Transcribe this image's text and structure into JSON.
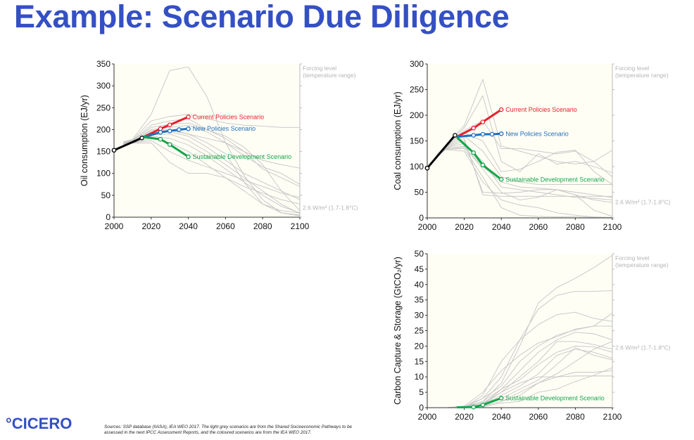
{
  "title": "Example: Scenario Due Diligence",
  "logo": "°CICERO",
  "sources": "Sources: SSP database (IIASA), IEA WEO 2017. The light grey scenarios are from the Shared Socioeconomic Pathways to be assessed in the next IPCC Assessment Reports, and the coloured scenarios are from the IEA WEO 2017.",
  "colors": {
    "title": "#3450c4",
    "current": "#e8202a",
    "new": "#1f6fbf",
    "sds": "#12a54a",
    "history": "#000000",
    "grey": "#c4c4c4",
    "plot_bg": "#fffef5"
  },
  "chart_data": [
    {
      "id": "oil",
      "type": "line",
      "ylabel": "Oil consumption (EJ/yr)",
      "xlim": [
        2000,
        2100
      ],
      "ylim": [
        0,
        350
      ],
      "xticks": [
        2000,
        2020,
        2040,
        2060,
        2080,
        2100
      ],
      "yticks": [
        0,
        50,
        100,
        150,
        200,
        250,
        300,
        350
      ],
      "side_labels": {
        "top1": "Forcing level",
        "top2": "(temperature range)",
        "bottom": "2.6 W/m² (1.7-1.8°C)",
        "bottom_value": 22
      },
      "series": [
        {
          "name": "History",
          "color_key": "history",
          "x": [
            2000,
            2015
          ],
          "y": [
            153,
            181
          ]
        },
        {
          "name": "Current Policies Scenario",
          "color_key": "current",
          "x": [
            2016,
            2025,
            2030,
            2040
          ],
          "y": [
            183,
            202,
            211,
            229
          ],
          "label": true
        },
        {
          "name": "New Policies Scenario",
          "color_key": "new",
          "x": [
            2016,
            2025,
            2030,
            2035,
            2040
          ],
          "y": [
            183,
            194,
            197,
            200,
            202
          ],
          "label": true
        },
        {
          "name": "Sustainable Development Scenario",
          "color_key": "sds",
          "x": [
            2016,
            2025,
            2030,
            2040
          ],
          "y": [
            183,
            178,
            166,
            138
          ],
          "label": true
        }
      ],
      "grey_x": [
        2005,
        2010,
        2020,
        2030,
        2040,
        2050,
        2060,
        2070,
        2080,
        2090,
        2100
      ],
      "grey": [
        [
          172,
          178,
          235,
          335,
          343,
          275,
          170,
          95,
          40,
          10,
          5
        ],
        [
          172,
          176,
          220,
          230,
          235,
          225,
          215,
          210,
          208,
          205,
          205
        ],
        [
          170,
          175,
          210,
          220,
          225,
          200,
          180,
          150,
          110,
          90,
          70
        ],
        [
          170,
          174,
          205,
          212,
          215,
          200,
          185,
          160,
          120,
          60,
          15
        ],
        [
          170,
          173,
          200,
          205,
          210,
          195,
          170,
          140,
          115,
          100,
          75
        ],
        [
          170,
          172,
          195,
          198,
          190,
          180,
          170,
          150,
          130,
          120,
          112
        ],
        [
          169,
          172,
          190,
          195,
          185,
          160,
          130,
          100,
          80,
          60,
          40
        ],
        [
          169,
          171,
          188,
          190,
          175,
          150,
          120,
          90,
          60,
          30,
          8
        ],
        [
          168,
          171,
          185,
          180,
          165,
          140,
          110,
          80,
          50,
          25,
          10
        ],
        [
          168,
          170,
          180,
          170,
          150,
          120,
          90,
          70,
          55,
          40,
          30
        ],
        [
          167,
          170,
          175,
          150,
          130,
          115,
          100,
          85,
          70,
          55,
          45
        ],
        [
          166,
          169,
          170,
          125,
          100,
          100,
          90,
          60,
          30,
          15,
          10
        ],
        [
          168,
          172,
          198,
          200,
          190,
          170,
          145,
          80,
          30,
          10,
          3
        ]
      ]
    },
    {
      "id": "coal",
      "type": "line",
      "ylabel": "Coal consumption (EJ/yr)",
      "xlim": [
        2000,
        2100
      ],
      "ylim": [
        0,
        300
      ],
      "xticks": [
        2000,
        2020,
        2040,
        2060,
        2080,
        2100
      ],
      "yticks": [
        0,
        50,
        100,
        150,
        200,
        250,
        300
      ],
      "side_labels": {
        "top1": "Forcing level",
        "top2": "(temperature range)",
        "bottom": "2.6 W/m² (1.7-1.8°C)",
        "bottom_value": 31
      },
      "series": [
        {
          "name": "History",
          "color_key": "history",
          "x": [
            2000,
            2015
          ],
          "y": [
            97,
            161
          ]
        },
        {
          "name": "Current Policies Scenario",
          "color_key": "current",
          "x": [
            2016,
            2025,
            2030,
            2040
          ],
          "y": [
            158,
            175,
            187,
            211
          ],
          "label": true
        },
        {
          "name": "New Policies Scenario",
          "color_key": "new",
          "x": [
            2016,
            2025,
            2030,
            2035,
            2040
          ],
          "y": [
            158,
            161,
            163,
            163,
            164
          ],
          "label": true
        },
        {
          "name": "Sustainable Development Scenario",
          "color_key": "sds",
          "x": [
            2016,
            2025,
            2030,
            2040
          ],
          "y": [
            157,
            127,
            103,
            75
          ],
          "label": true
        }
      ],
      "grey_x": [
        2005,
        2010,
        2020,
        2030,
        2040,
        2050,
        2060,
        2070,
        2080,
        2090,
        2100
      ],
      "grey": [
        [
          120,
          140,
          180,
          270,
          140,
          130,
          120,
          110,
          105,
          110,
          132
        ],
        [
          120,
          140,
          175,
          238,
          110,
          90,
          125,
          105,
          110,
          100,
          88
        ],
        [
          122,
          141,
          170,
          190,
          135,
          135,
          130,
          125,
          130,
          110,
          80
        ],
        [
          121,
          140,
          165,
          150,
          90,
          95,
          110,
          128,
          132,
          90,
          65
        ],
        [
          121,
          139,
          160,
          130,
          80,
          70,
          65,
          65,
          65,
          65,
          65
        ],
        [
          120,
          138,
          155,
          45,
          42,
          42,
          42,
          42,
          42,
          42,
          42
        ],
        [
          120,
          137,
          150,
          50,
          48,
          50,
          55,
          55,
          45,
          35,
          30
        ],
        [
          120,
          136,
          145,
          110,
          60,
          55,
          50,
          45,
          40,
          38,
          35
        ],
        [
          120,
          135,
          140,
          95,
          50,
          35,
          40,
          55,
          45,
          15,
          3
        ],
        [
          119,
          134,
          135,
          80,
          20,
          5,
          3,
          2,
          2,
          1,
          1
        ],
        [
          119,
          133,
          130,
          70,
          35,
          25,
          20,
          10,
          5,
          2,
          1
        ],
        [
          119,
          133,
          138,
          100,
          70,
          60,
          58,
          55,
          50,
          45,
          40
        ]
      ]
    },
    {
      "id": "ccs",
      "type": "line",
      "ylabel": "Carbon Capture & Storage (GtCO₂/yr)",
      "xlim": [
        2000,
        2100
      ],
      "ylim": [
        0,
        50
      ],
      "xticks": [
        2000,
        2020,
        2040,
        2060,
        2080,
        2100
      ],
      "yticks": [
        0,
        5,
        10,
        15,
        20,
        25,
        30,
        35,
        40,
        45,
        50
      ],
      "side_labels": {
        "top1": "Forcing level",
        "top2": "(temperature range)",
        "bottom": "2.6 W/m² (1.7-1.8°C)",
        "bottom_value": 19.5
      },
      "series": [
        {
          "name": "Sustainable Development Scenario",
          "color_key": "sds",
          "x": [
            2016,
            2025,
            2030,
            2040
          ],
          "y": [
            0.1,
            0.2,
            0.9,
            3.1
          ],
          "label": true
        }
      ],
      "grey_x": [
        2010,
        2020,
        2030,
        2040,
        2050,
        2060,
        2070,
        2080,
        2090,
        2100
      ],
      "grey": [
        [
          0,
          0,
          2,
          8,
          20,
          34,
          39,
          42,
          45.5,
          49.5
        ],
        [
          0,
          0,
          3,
          10,
          22,
          32,
          36.5,
          37.8,
          37.8,
          38
        ],
        [
          0,
          0,
          4,
          15,
          22,
          27,
          30.2,
          31,
          29,
          28
        ],
        [
          0,
          0.5,
          5,
          12,
          17,
          21,
          23,
          25.5,
          26.5,
          30.7
        ],
        [
          0,
          0.3,
          3,
          7,
          15,
          20,
          23.5,
          25.3,
          26.5,
          26.5
        ],
        [
          0,
          0.2,
          2,
          6,
          12,
          18,
          22,
          24.5,
          24,
          22
        ],
        [
          0,
          0.1,
          1.5,
          5,
          10,
          15,
          21.5,
          21.5,
          20.5,
          19
        ],
        [
          0,
          0,
          1,
          6,
          9,
          14,
          18,
          20,
          19.8,
          18
        ],
        [
          0,
          0,
          1,
          4,
          7,
          11,
          17,
          19,
          18,
          16
        ],
        [
          0,
          0,
          1,
          3,
          6,
          9,
          14,
          19.5,
          17,
          15.5
        ],
        [
          0,
          0,
          0.5,
          2,
          5,
          8,
          11,
          15,
          19,
          21.5
        ],
        [
          0,
          0,
          0.5,
          2,
          4,
          8,
          10,
          11.5,
          11.5,
          12
        ],
        [
          0,
          0,
          0.3,
          1.5,
          2,
          5,
          6,
          8.5,
          10.5,
          13
        ],
        [
          0,
          0,
          1,
          5,
          8,
          10,
          10,
          10.3,
          10.3,
          10.3
        ]
      ]
    }
  ]
}
